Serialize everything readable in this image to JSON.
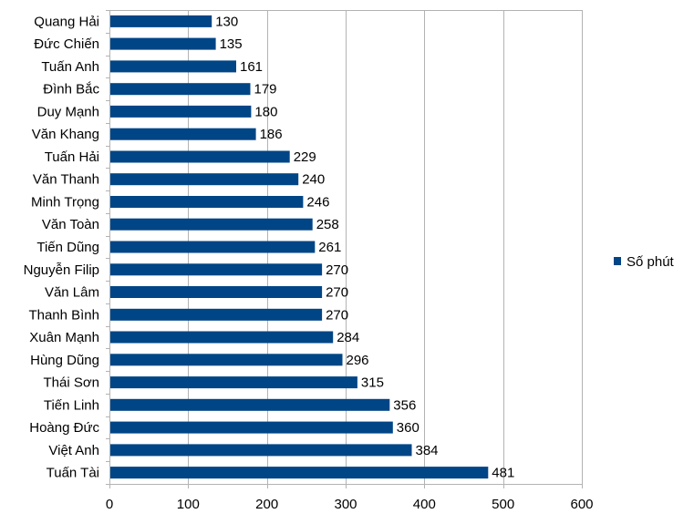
{
  "chart_data": {
    "type": "bar",
    "orientation": "horizontal",
    "categories": [
      "Quang Hải",
      "Đức Chiến",
      "Tuấn Anh",
      "Đình Bắc",
      "Duy Mạnh",
      "Văn Khang",
      "Tuấn Hải",
      "Văn Thanh",
      "Minh Trọng",
      "Văn Toàn",
      "Tiến Dũng",
      "Nguyễn Filip",
      "Văn Lâm",
      "Thanh Bình",
      "Xuân Mạnh",
      "Hùng Dũng",
      "Thái Sơn",
      "Tiến Linh",
      "Hoàng Đức",
      "Việt Anh",
      "Tuấn Tài"
    ],
    "series": [
      {
        "name": "Số phút",
        "values": [
          130,
          135,
          161,
          179,
          180,
          186,
          229,
          240,
          246,
          258,
          261,
          270,
          270,
          270,
          284,
          296,
          315,
          356,
          360,
          384,
          481
        ],
        "color": "#004586"
      }
    ],
    "xlim": [
      0,
      600
    ],
    "xticks": [
      0,
      100,
      200,
      300,
      400,
      500,
      600
    ],
    "grid": true,
    "data_labels": true,
    "legend_position": "right"
  }
}
